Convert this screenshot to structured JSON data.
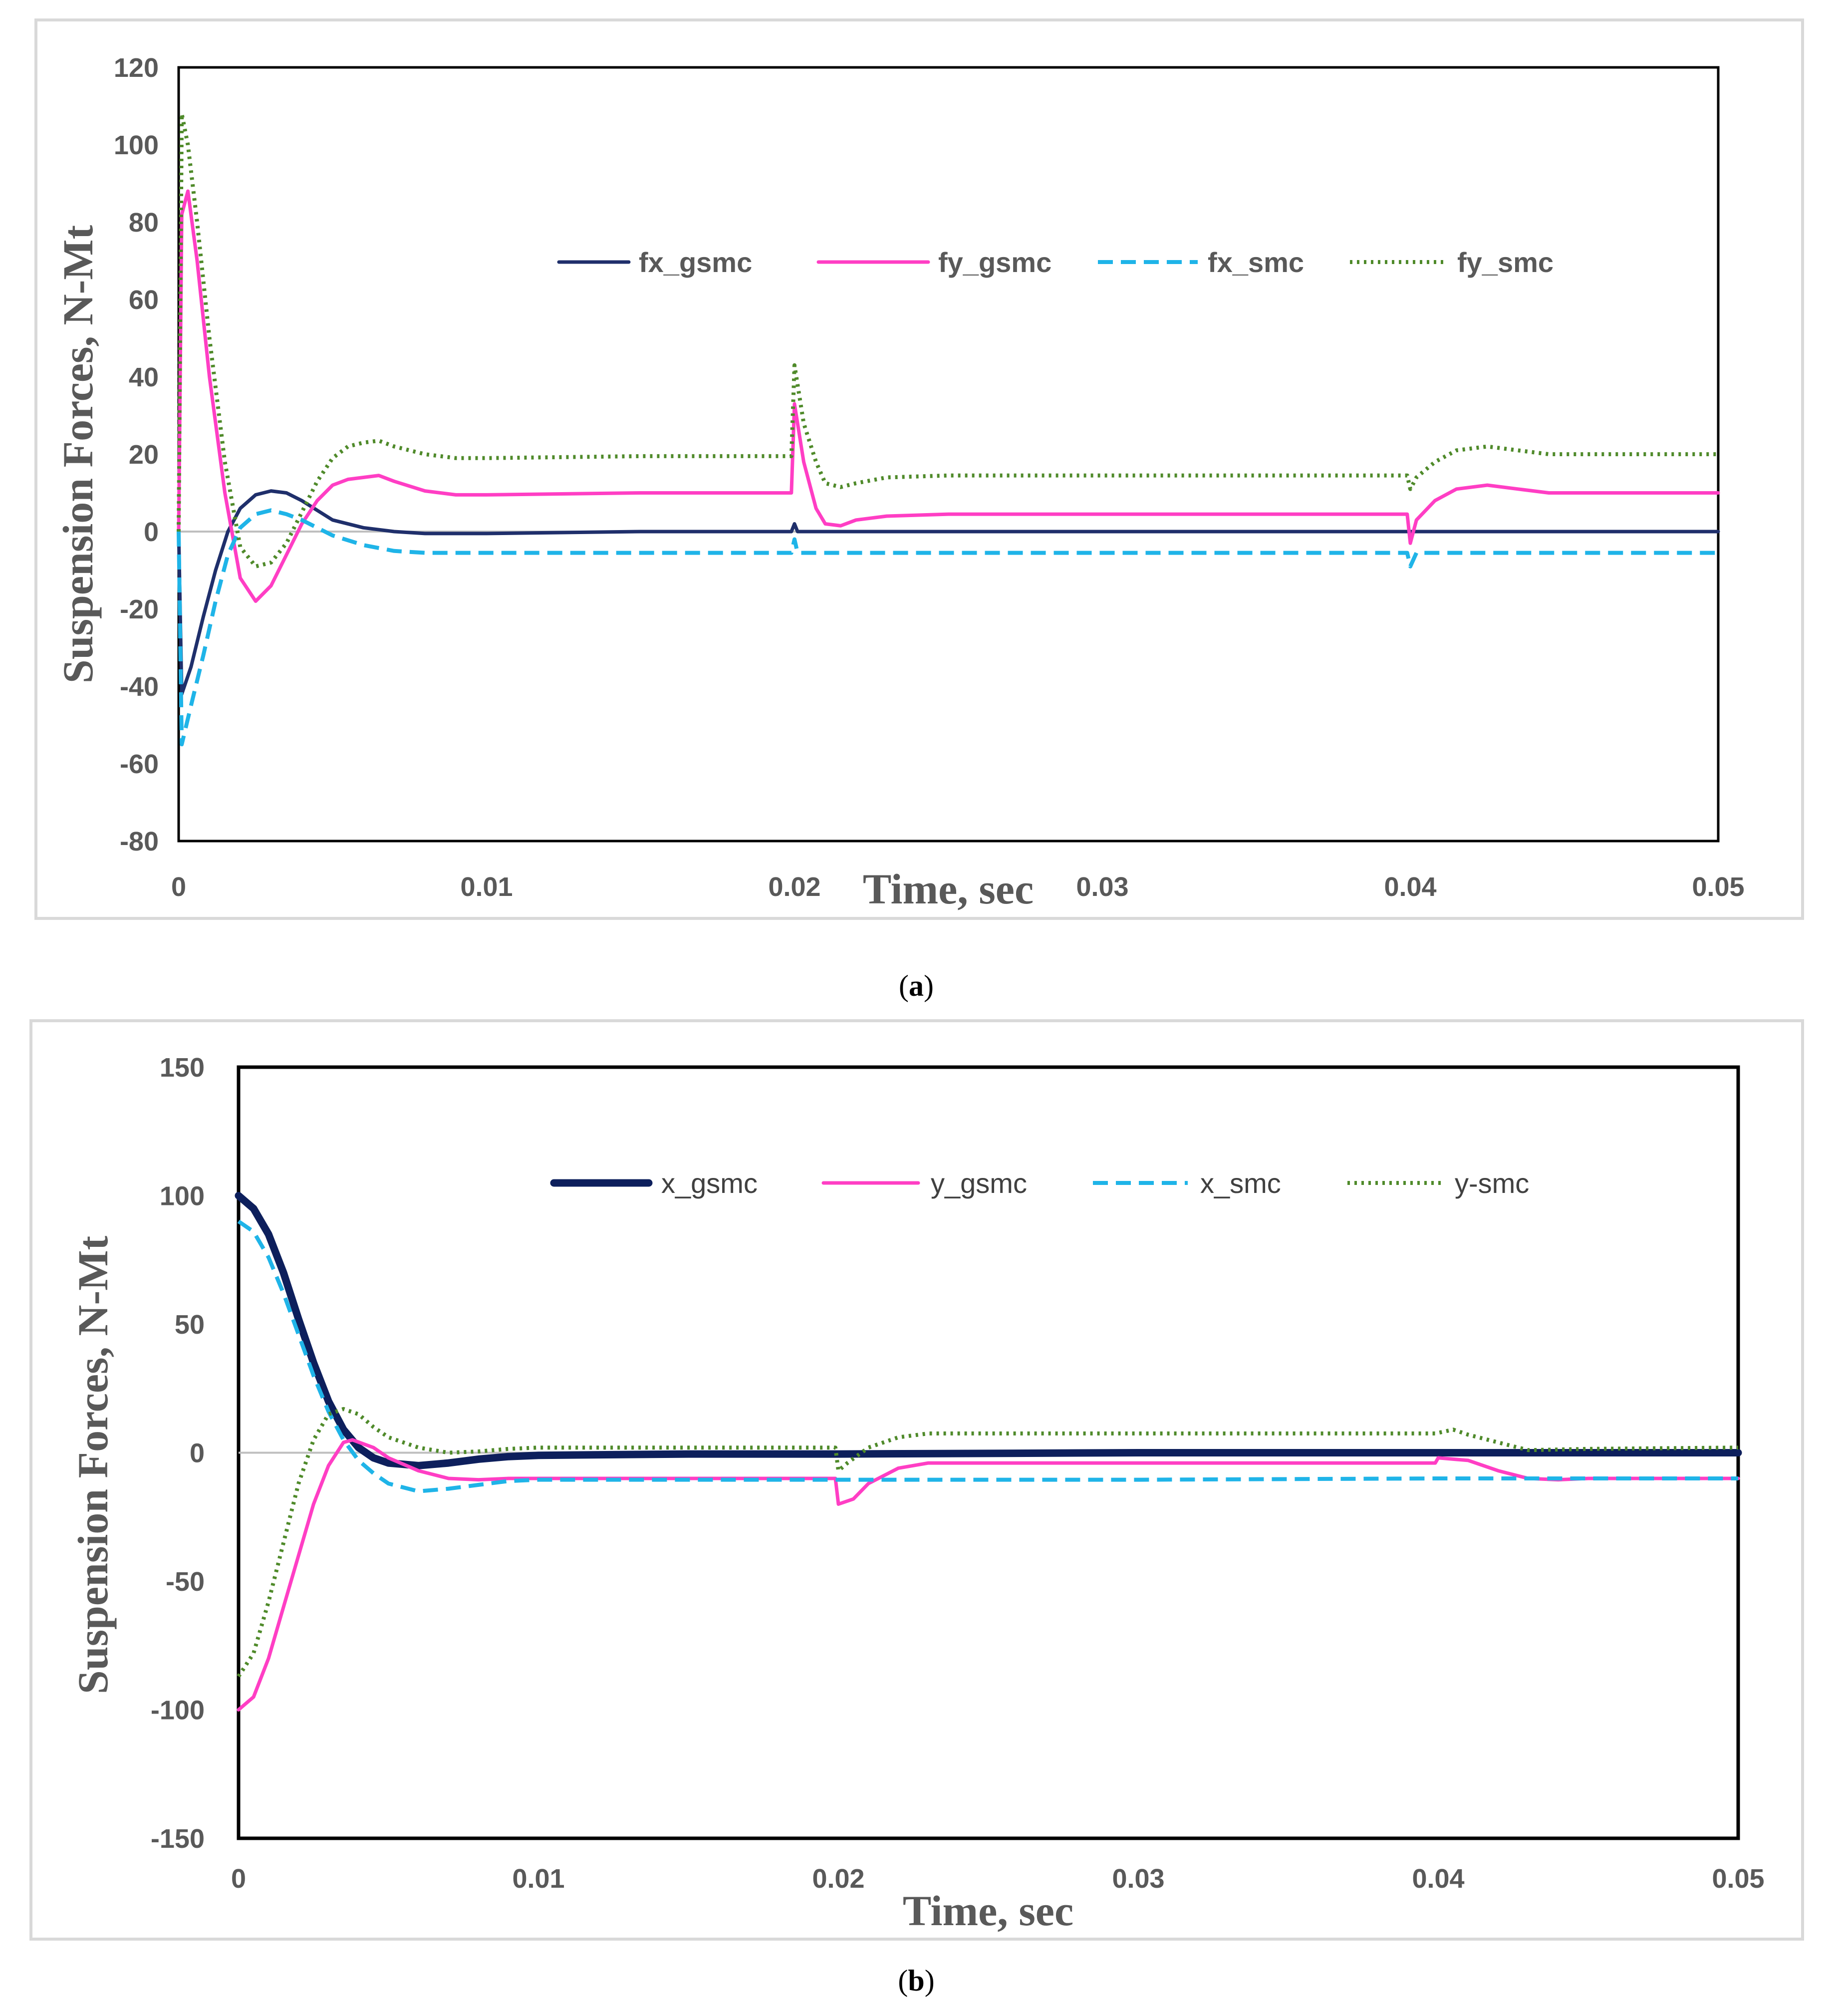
{
  "chart_data": [
    {
      "type": "line",
      "panel_label": "a",
      "xlabel": "Time, sec",
      "ylabel": "Suspension Forces, N-Mt",
      "xlim": [
        0,
        0.05
      ],
      "ylim": [
        -80,
        120
      ],
      "x_ticks": [
        "0",
        "0.01",
        "0.02",
        "0.03",
        "0.04",
        "0.05"
      ],
      "y_ticks": [
        "120",
        "100",
        "80",
        "60",
        "40",
        "20",
        "0",
        "-20",
        "-40",
        "-60",
        "-80"
      ],
      "legend_position": "upper-right, inside plot",
      "grid": false,
      "series": [
        {
          "name": "fx_gsmc",
          "color": "#1f2f6b",
          "style": "solid",
          "points": [
            [
              0,
              0
            ],
            [
              0.0001,
              -42
            ],
            [
              0.0004,
              -35
            ],
            [
              0.0008,
              -22
            ],
            [
              0.0012,
              -10
            ],
            [
              0.0016,
              0
            ],
            [
              0.002,
              6
            ],
            [
              0.0025,
              9.5
            ],
            [
              0.003,
              10.5
            ],
            [
              0.0035,
              10
            ],
            [
              0.004,
              8
            ],
            [
              0.0045,
              5.5
            ],
            [
              0.005,
              3
            ],
            [
              0.006,
              1
            ],
            [
              0.007,
              0
            ],
            [
              0.008,
              -0.5
            ],
            [
              0.01,
              -0.5
            ],
            [
              0.015,
              0
            ],
            [
              0.0199,
              0
            ],
            [
              0.02,
              2
            ],
            [
              0.0201,
              0
            ],
            [
              0.03,
              0
            ],
            [
              0.04,
              0
            ],
            [
              0.045,
              0
            ],
            [
              0.05,
              0
            ]
          ]
        },
        {
          "name": "fy_gsmc",
          "color": "#ff3ec4",
          "style": "solid",
          "points": [
            [
              0,
              0
            ],
            [
              0.0001,
              82
            ],
            [
              0.0003,
              88
            ],
            [
              0.0006,
              70
            ],
            [
              0.001,
              40
            ],
            [
              0.0015,
              10
            ],
            [
              0.002,
              -12
            ],
            [
              0.0025,
              -18
            ],
            [
              0.003,
              -14
            ],
            [
              0.0035,
              -6
            ],
            [
              0.004,
              2
            ],
            [
              0.0045,
              8
            ],
            [
              0.005,
              12
            ],
            [
              0.0055,
              13.5
            ],
            [
              0.006,
              14
            ],
            [
              0.0065,
              14.5
            ],
            [
              0.007,
              13
            ],
            [
              0.008,
              10.5
            ],
            [
              0.009,
              9.5
            ],
            [
              0.01,
              9.5
            ],
            [
              0.015,
              10
            ],
            [
              0.0199,
              10
            ],
            [
              0.02,
              33
            ],
            [
              0.0203,
              18
            ],
            [
              0.0207,
              6
            ],
            [
              0.021,
              2
            ],
            [
              0.0215,
              1.5
            ],
            [
              0.022,
              3
            ],
            [
              0.023,
              4
            ],
            [
              0.025,
              4.5
            ],
            [
              0.03,
              4.5
            ],
            [
              0.035,
              4.5
            ],
            [
              0.0399,
              4.5
            ],
            [
              0.04,
              -3
            ],
            [
              0.0402,
              3
            ],
            [
              0.0408,
              8
            ],
            [
              0.0415,
              11
            ],
            [
              0.0425,
              12
            ],
            [
              0.0435,
              11
            ],
            [
              0.0445,
              10
            ],
            [
              0.05,
              10
            ]
          ]
        },
        {
          "name": "fx_smc",
          "color": "#1fb4e8",
          "style": "dashed",
          "points": [
            [
              0,
              0
            ],
            [
              0.0001,
              -55
            ],
            [
              0.0004,
              -45
            ],
            [
              0.0008,
              -32
            ],
            [
              0.0012,
              -18
            ],
            [
              0.0016,
              -6
            ],
            [
              0.002,
              1
            ],
            [
              0.0025,
              4.5
            ],
            [
              0.003,
              5.5
            ],
            [
              0.0035,
              4.5
            ],
            [
              0.004,
              3
            ],
            [
              0.005,
              -1
            ],
            [
              0.006,
              -3.5
            ],
            [
              0.007,
              -5
            ],
            [
              0.008,
              -5.5
            ],
            [
              0.01,
              -5.5
            ],
            [
              0.015,
              -5.5
            ],
            [
              0.0199,
              -5.5
            ],
            [
              0.02,
              -2
            ],
            [
              0.0201,
              -5.5
            ],
            [
              0.03,
              -5.5
            ],
            [
              0.0399,
              -5.5
            ],
            [
              0.04,
              -9
            ],
            [
              0.0402,
              -5.5
            ],
            [
              0.045,
              -5.5
            ],
            [
              0.05,
              -5.5
            ]
          ]
        },
        {
          "name": "fy_smc",
          "color": "#4f8a2a",
          "style": "dotted",
          "points": [
            [
              0,
              0
            ],
            [
              0.0001,
              108
            ],
            [
              0.0003,
              100
            ],
            [
              0.0006,
              80
            ],
            [
              0.001,
              50
            ],
            [
              0.0015,
              18
            ],
            [
              0.002,
              -4
            ],
            [
              0.0025,
              -9
            ],
            [
              0.003,
              -8
            ],
            [
              0.0035,
              -3
            ],
            [
              0.004,
              5
            ],
            [
              0.0045,
              13
            ],
            [
              0.005,
              19
            ],
            [
              0.0055,
              22
            ],
            [
              0.006,
              23
            ],
            [
              0.0065,
              23.5
            ],
            [
              0.007,
              22
            ],
            [
              0.008,
              20
            ],
            [
              0.009,
              19
            ],
            [
              0.01,
              19
            ],
            [
              0.015,
              19.5
            ],
            [
              0.0199,
              19.5
            ],
            [
              0.02,
              43
            ],
            [
              0.0203,
              28
            ],
            [
              0.0207,
              18
            ],
            [
              0.021,
              12.5
            ],
            [
              0.0215,
              11.5
            ],
            [
              0.022,
              12.5
            ],
            [
              0.023,
              14
            ],
            [
              0.025,
              14.5
            ],
            [
              0.03,
              14.5
            ],
            [
              0.035,
              14.5
            ],
            [
              0.0399,
              14.5
            ],
            [
              0.04,
              11
            ],
            [
              0.0402,
              14
            ],
            [
              0.0408,
              18
            ],
            [
              0.0415,
              21
            ],
            [
              0.0425,
              22
            ],
            [
              0.0435,
              21
            ],
            [
              0.0445,
              20
            ],
            [
              0.05,
              20
            ]
          ]
        }
      ]
    },
    {
      "type": "line",
      "panel_label": "b",
      "xlabel": "Time, sec",
      "ylabel": "Suspension Forces, N-Mt",
      "xlim": [
        0,
        0.05
      ],
      "ylim": [
        -150,
        150
      ],
      "x_ticks": [
        "0",
        "0.01",
        "0.02",
        "0.03",
        "0.04",
        "0.05"
      ],
      "y_ticks": [
        "150",
        "100",
        "50",
        "0",
        "-50",
        "-100",
        "-150"
      ],
      "legend_position": "upper-right, inside plot",
      "grid": false,
      "series": [
        {
          "name": "x_gsmc",
          "color": "#0d1f5c",
          "style": "solid-thick",
          "points": [
            [
              0,
              100
            ],
            [
              0.0005,
              95
            ],
            [
              0.001,
              85
            ],
            [
              0.0015,
              70
            ],
            [
              0.002,
              52
            ],
            [
              0.0025,
              35
            ],
            [
              0.003,
              20
            ],
            [
              0.0035,
              9
            ],
            [
              0.004,
              2
            ],
            [
              0.0045,
              -2
            ],
            [
              0.005,
              -4
            ],
            [
              0.006,
              -5
            ],
            [
              0.007,
              -4
            ],
            [
              0.008,
              -2.5
            ],
            [
              0.009,
              -1.5
            ],
            [
              0.01,
              -1
            ],
            [
              0.015,
              -0.5
            ],
            [
              0.02,
              -0.5
            ],
            [
              0.03,
              0
            ],
            [
              0.04,
              0
            ],
            [
              0.05,
              0
            ]
          ]
        },
        {
          "name": "y_gsmc",
          "color": "#ff3ec4",
          "style": "solid",
          "points": [
            [
              0,
              -100
            ],
            [
              0.0005,
              -95
            ],
            [
              0.001,
              -80
            ],
            [
              0.0015,
              -60
            ],
            [
              0.002,
              -40
            ],
            [
              0.0025,
              -20
            ],
            [
              0.003,
              -5
            ],
            [
              0.0035,
              4
            ],
            [
              0.0038,
              5
            ],
            [
              0.0045,
              2
            ],
            [
              0.005,
              -2
            ],
            [
              0.006,
              -7
            ],
            [
              0.007,
              -10
            ],
            [
              0.008,
              -10.5
            ],
            [
              0.009,
              -10
            ],
            [
              0.01,
              -10
            ],
            [
              0.015,
              -10
            ],
            [
              0.0199,
              -10
            ],
            [
              0.02,
              -20
            ],
            [
              0.0205,
              -18
            ],
            [
              0.021,
              -12
            ],
            [
              0.022,
              -6
            ],
            [
              0.023,
              -4
            ],
            [
              0.025,
              -4
            ],
            [
              0.03,
              -4
            ],
            [
              0.035,
              -4
            ],
            [
              0.0399,
              -4
            ],
            [
              0.04,
              -2
            ],
            [
              0.041,
              -3
            ],
            [
              0.042,
              -7
            ],
            [
              0.043,
              -10
            ],
            [
              0.044,
              -10.5
            ],
            [
              0.045,
              -10
            ],
            [
              0.05,
              -10
            ]
          ]
        },
        {
          "name": "x_smc",
          "color": "#1fb4e8",
          "style": "dashed",
          "points": [
            [
              0,
              90
            ],
            [
              0.0005,
              86
            ],
            [
              0.001,
              76
            ],
            [
              0.0015,
              62
            ],
            [
              0.002,
              46
            ],
            [
              0.0025,
              30
            ],
            [
              0.003,
              16
            ],
            [
              0.0035,
              5
            ],
            [
              0.004,
              -3
            ],
            [
              0.0045,
              -8
            ],
            [
              0.005,
              -12
            ],
            [
              0.006,
              -15
            ],
            [
              0.007,
              -14
            ],
            [
              0.008,
              -12.5
            ],
            [
              0.009,
              -11
            ],
            [
              0.01,
              -10.5
            ],
            [
              0.015,
              -10.5
            ],
            [
              0.02,
              -10.5
            ],
            [
              0.03,
              -10.5
            ],
            [
              0.04,
              -10
            ],
            [
              0.045,
              -10
            ],
            [
              0.05,
              -10
            ]
          ]
        },
        {
          "name": "y-smc",
          "color": "#4f8a2a",
          "style": "dotted",
          "points": [
            [
              0,
              -87
            ],
            [
              0.0005,
              -78
            ],
            [
              0.001,
              -58
            ],
            [
              0.0015,
              -35
            ],
            [
              0.002,
              -12
            ],
            [
              0.0025,
              5
            ],
            [
              0.003,
              15
            ],
            [
              0.0035,
              17
            ],
            [
              0.004,
              15
            ],
            [
              0.0045,
              10
            ],
            [
              0.005,
              6
            ],
            [
              0.006,
              2
            ],
            [
              0.007,
              0
            ],
            [
              0.008,
              0.5
            ],
            [
              0.009,
              1.5
            ],
            [
              0.01,
              2
            ],
            [
              0.015,
              2
            ],
            [
              0.0199,
              2
            ],
            [
              0.02,
              -7
            ],
            [
              0.0203,
              -4
            ],
            [
              0.021,
              2
            ],
            [
              0.022,
              6
            ],
            [
              0.023,
              7.5
            ],
            [
              0.025,
              7.5
            ],
            [
              0.03,
              7.5
            ],
            [
              0.035,
              7.5
            ],
            [
              0.0399,
              7.5
            ],
            [
              0.0405,
              9
            ],
            [
              0.041,
              7
            ],
            [
              0.042,
              4
            ],
            [
              0.043,
              1
            ],
            [
              0.045,
              1.5
            ],
            [
              0.05,
              2
            ]
          ]
        }
      ]
    }
  ]
}
